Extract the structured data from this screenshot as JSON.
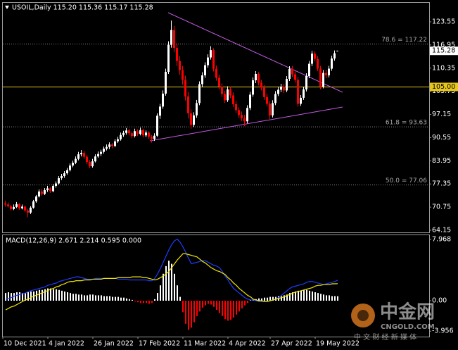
{
  "chart_data": [
    {
      "type": "candlestick",
      "title": "USOIL,Daily  115.20 115.36 115.17 115.28",
      "up_color": "#ffffff",
      "down_color": "#ff0000",
      "ohlc": [
        [
          71.8,
          72.6,
          70.9,
          71.5
        ],
        [
          71.5,
          72.1,
          70.6,
          71.0
        ],
        [
          71.0,
          71.4,
          69.8,
          70.2
        ],
        [
          70.2,
          71.5,
          69.9,
          70.8
        ],
        [
          70.8,
          72.2,
          70.5,
          71.6
        ],
        [
          71.6,
          71.9,
          70.0,
          70.4
        ],
        [
          70.4,
          71.5,
          70.1,
          70.9
        ],
        [
          70.9,
          71.2,
          69.3,
          69.8
        ],
        [
          69.8,
          70.3,
          67.9,
          69.2
        ],
        [
          69.2,
          71.0,
          68.8,
          70.6
        ],
        [
          70.6,
          72.8,
          70.3,
          72.4
        ],
        [
          72.4,
          74.2,
          72.0,
          73.8
        ],
        [
          73.8,
          75.8,
          73.5,
          75.2
        ],
        [
          75.2,
          75.9,
          74.0,
          74.5
        ],
        [
          74.5,
          76.2,
          74.2,
          75.6
        ],
        [
          75.6,
          76.8,
          75.1,
          76.1
        ],
        [
          76.1,
          76.5,
          74.8,
          75.3
        ],
        [
          75.3,
          77.3,
          75.0,
          76.8
        ],
        [
          76.8,
          78.1,
          76.3,
          77.5
        ],
        [
          77.5,
          79.6,
          77.2,
          79.0
        ],
        [
          79.0,
          80.2,
          78.5,
          79.6
        ],
        [
          79.6,
          81.0,
          79.1,
          80.4
        ],
        [
          80.4,
          81.9,
          80.0,
          81.3
        ],
        [
          81.3,
          83.2,
          80.9,
          82.6
        ],
        [
          82.6,
          84.0,
          82.1,
          83.4
        ],
        [
          83.4,
          85.2,
          83.0,
          84.5
        ],
        [
          84.5,
          86.5,
          84.1,
          85.8
        ],
        [
          85.8,
          87.0,
          85.2,
          86.2
        ],
        [
          86.2,
          86.8,
          84.5,
          85.1
        ],
        [
          85.1,
          85.6,
          83.0,
          83.6
        ],
        [
          83.6,
          84.2,
          81.8,
          82.4
        ],
        [
          82.4,
          84.5,
          82.0,
          83.8
        ],
        [
          83.8,
          85.8,
          83.5,
          85.2
        ],
        [
          85.2,
          86.6,
          84.8,
          85.9
        ],
        [
          85.9,
          87.1,
          85.3,
          86.5
        ],
        [
          86.5,
          88.0,
          86.0,
          87.4
        ],
        [
          87.4,
          88.6,
          86.9,
          87.9
        ],
        [
          87.9,
          89.2,
          87.3,
          88.6
        ],
        [
          88.6,
          89.0,
          87.5,
          88.2
        ],
        [
          88.2,
          90.1,
          87.8,
          89.5
        ],
        [
          89.5,
          90.8,
          89.0,
          90.1
        ],
        [
          90.1,
          92.0,
          89.7,
          91.3
        ],
        [
          91.3,
          92.5,
          90.8,
          91.9
        ],
        [
          91.9,
          93.3,
          91.4,
          92.6
        ],
        [
          92.6,
          93.0,
          91.2,
          91.8
        ],
        [
          91.8,
          92.3,
          90.4,
          91.0
        ],
        [
          91.0,
          93.1,
          90.6,
          92.4
        ],
        [
          92.4,
          92.9,
          91.0,
          91.6
        ],
        [
          91.6,
          93.4,
          91.2,
          92.7
        ],
        [
          92.7,
          93.1,
          90.6,
          91.2
        ],
        [
          91.2,
          92.6,
          90.7,
          92.0
        ],
        [
          92.0,
          92.4,
          90.2,
          90.8
        ],
        [
          90.8,
          91.3,
          89.1,
          90.2
        ],
        [
          90.2,
          91.8,
          89.6,
          91.1
        ],
        [
          91.1,
          97.5,
          90.8,
          96.8
        ],
        [
          96.8,
          100.2,
          95.9,
          99.4
        ],
        [
          99.4,
          104.0,
          98.8,
          103.1
        ],
        [
          103.1,
          110.2,
          102.5,
          109.3
        ],
        [
          109.3,
          118.0,
          108.7,
          117.0
        ],
        [
          117.0,
          123.9,
          116.2,
          121.2
        ],
        [
          121.2,
          122.4,
          114.9,
          116.1
        ],
        [
          116.1,
          117.3,
          111.0,
          112.4
        ],
        [
          112.4,
          113.8,
          108.5,
          109.8
        ],
        [
          109.8,
          111.0,
          105.6,
          107.0
        ],
        [
          107.0,
          108.2,
          101.1,
          102.3
        ],
        [
          102.3,
          103.5,
          96.0,
          97.5
        ],
        [
          97.5,
          98.6,
          93.1,
          94.2
        ],
        [
          94.2,
          97.8,
          93.6,
          96.9
        ],
        [
          96.9,
          101.3,
          96.2,
          100.4
        ],
        [
          100.4,
          106.6,
          99.8,
          105.8
        ],
        [
          105.8,
          109.2,
          104.9,
          108.3
        ],
        [
          108.3,
          112.0,
          107.6,
          111.2
        ],
        [
          111.2,
          114.3,
          110.5,
          113.4
        ],
        [
          113.4,
          116.6,
          112.8,
          115.5
        ],
        [
          115.5,
          116.0,
          109.4,
          110.2
        ],
        [
          110.2,
          111.1,
          106.8,
          107.6
        ],
        [
          107.6,
          108.5,
          104.3,
          105.1
        ],
        [
          105.1,
          106.0,
          102.1,
          103.0
        ],
        [
          103.0,
          103.9,
          100.4,
          101.2
        ],
        [
          101.2,
          105.2,
          100.7,
          104.3
        ],
        [
          104.3,
          105.0,
          101.8,
          102.6
        ],
        [
          102.6,
          103.4,
          99.3,
          100.1
        ],
        [
          100.1,
          101.0,
          97.6,
          98.4
        ],
        [
          98.4,
          99.2,
          96.2,
          97.0
        ],
        [
          97.0,
          98.0,
          95.3,
          96.1
        ],
        [
          96.1,
          97.0,
          93.8,
          95.2
        ],
        [
          95.2,
          99.8,
          94.6,
          99.0
        ],
        [
          99.0,
          103.6,
          98.4,
          102.8
        ],
        [
          102.8,
          107.7,
          102.2,
          106.9
        ],
        [
          106.9,
          109.5,
          106.1,
          108.7
        ],
        [
          108.7,
          109.2,
          105.4,
          106.2
        ],
        [
          106.2,
          107.0,
          104.0,
          104.8
        ],
        [
          104.8,
          105.5,
          101.3,
          102.1
        ],
        [
          102.1,
          103.0,
          99.5,
          100.2
        ],
        [
          100.2,
          101.0,
          95.8,
          96.9
        ],
        [
          96.9,
          101.2,
          96.3,
          100.4
        ],
        [
          100.4,
          103.8,
          99.8,
          103.0
        ],
        [
          103.0,
          105.0,
          102.4,
          104.2
        ],
        [
          104.2,
          105.9,
          103.5,
          105.1
        ],
        [
          105.1,
          105.8,
          103.2,
          104.0
        ],
        [
          104.0,
          108.1,
          103.5,
          107.3
        ],
        [
          107.3,
          110.9,
          106.7,
          110.1
        ],
        [
          110.1,
          111.0,
          107.8,
          108.6
        ],
        [
          108.6,
          109.4,
          106.2,
          107.0
        ],
        [
          107.0,
          107.8,
          99.4,
          100.2
        ],
        [
          100.2,
          102.7,
          99.6,
          101.9
        ],
        [
          101.9,
          105.1,
          101.3,
          104.3
        ],
        [
          104.3,
          108.9,
          103.7,
          108.1
        ],
        [
          108.1,
          112.4,
          107.5,
          111.6
        ],
        [
          111.6,
          115.3,
          110.9,
          114.5
        ],
        [
          114.5,
          115.2,
          112.3,
          113.0
        ],
        [
          113.0,
          113.8,
          109.5,
          110.2
        ],
        [
          110.2,
          111.0,
          104.3,
          105.1
        ],
        [
          105.1,
          109.8,
          104.6,
          109.0
        ],
        [
          109.0,
          109.9,
          107.5,
          108.3
        ],
        [
          108.3,
          111.0,
          107.7,
          110.2
        ],
        [
          110.2,
          113.9,
          109.6,
          113.1
        ],
        [
          113.1,
          115.4,
          112.5,
          114.6
        ],
        [
          115.2,
          115.36,
          115.17,
          115.28
        ]
      ],
      "ylim": [
        63.55,
        129.17
      ],
      "yticks": [
        123.55,
        116.95,
        110.35,
        103.75,
        97.15,
        90.55,
        83.95,
        77.35,
        70.75,
        64.15
      ],
      "levels": [
        {
          "value": 117.22,
          "label": "78.6 = 117.22"
        },
        {
          "value": 93.63,
          "label": "61.8 = 93.63"
        },
        {
          "value": 77.06,
          "label": "50.0 = 77.06"
        }
      ],
      "level_color": "#8a8a8a",
      "price_line": {
        "value": 105,
        "label": "105.00",
        "color": "#e6c619"
      },
      "current_price": {
        "value": 115.28,
        "label": "115.28"
      },
      "trendline_color": "#c25be0",
      "trendlines": [
        {
          "x": [
            58,
            120
          ],
          "y": [
            126.16,
            103.48
          ]
        },
        {
          "x": [
            51.5,
            120
          ],
          "y": [
            89.63,
            99.27
          ]
        }
      ],
      "x_labels": [
        "10 Dec 2021",
        "4 Jan 2022",
        "26 Jan 2022",
        "17 Feb 2022",
        "11 Mar 2022",
        "4 Apr 2022",
        "27 Apr 2022",
        "19 May 2022"
      ]
    },
    {
      "type": "macd",
      "title": "MACD(12,26,9) 2.671 2.214 0.595 0.000",
      "ylim": [
        -4.67,
        8.61
      ],
      "yticks": [
        7.968,
        {
          "value": 0,
          "label": "0.00"
        },
        -3.956
      ],
      "histogram": {
        "up_color": "#ffffff",
        "down_color": "#ff0000",
        "values": [
          1.0,
          1.1,
          1.0,
          1.0,
          1.1,
          1.1,
          1.0,
          1.0,
          1.1,
          1.2,
          1.2,
          1.3,
          1.4,
          1.4,
          1.5,
          1.6,
          1.6,
          1.5,
          1.5,
          1.4,
          1.3,
          1.2,
          1.1,
          1.0,
          0.9,
          0.9,
          0.8,
          0.8,
          0.7,
          0.7,
          0.8,
          0.8,
          0.7,
          0.7,
          0.7,
          0.6,
          0.6,
          0.6,
          0.5,
          0.5,
          0.5,
          0.4,
          0.4,
          0.3,
          0.2,
          0.1,
          -0.1,
          -0.2,
          -0.3,
          -0.3,
          -0.3,
          -0.4,
          -0.3,
          0.2,
          1.0,
          2.0,
          3.5,
          4.5,
          5.2,
          4.8,
          3.5,
          2.0,
          0.5,
          -1.5,
          -3.0,
          -3.8,
          -3.5,
          -2.8,
          -2.0,
          -1.4,
          -0.9,
          -0.6,
          -0.4,
          -0.5,
          -0.8,
          -1.2,
          -1.6,
          -2.0,
          -2.4,
          -2.6,
          -2.5,
          -2.2,
          -1.8,
          -1.4,
          -1.0,
          -0.6,
          -0.3,
          0.1,
          0.2,
          0.2,
          0.3,
          0.3,
          0.4,
          0.4,
          0.5,
          0.5,
          0.5,
          0.6,
          0.6,
          0.7,
          0.8,
          1.0,
          1.1,
          1.2,
          1.3,
          1.3,
          1.4,
          1.4,
          1.3,
          1.2,
          1.1,
          1.0,
          0.9,
          0.8,
          0.7,
          0.7,
          0.6,
          0.6,
          0.595
        ]
      },
      "macd": {
        "color": "#1e3cff",
        "values": [
          0.2,
          0.3,
          0.4,
          0.6,
          0.7,
          0.8,
          0.9,
          1.0,
          1.2,
          1.3,
          1.4,
          1.5,
          1.6,
          1.7,
          1.8,
          2.0,
          2.1,
          2.2,
          2.3,
          2.5,
          2.6,
          2.7,
          2.8,
          2.9,
          3.0,
          3.1,
          3.1,
          3.0,
          2.9,
          2.8,
          2.8,
          2.8,
          2.9,
          2.9,
          2.9,
          2.9,
          2.9,
          2.9,
          2.9,
          2.9,
          2.8,
          2.8,
          2.8,
          2.8,
          2.7,
          2.7,
          2.7,
          2.7,
          2.7,
          2.7,
          2.7,
          2.6,
          2.6,
          2.9,
          3.5,
          4.2,
          5.0,
          5.8,
          6.6,
          7.3,
          7.8,
          8.0,
          7.6,
          7.0,
          6.3,
          5.5,
          4.8,
          4.9,
          5.0,
          5.1,
          5.2,
          5.2,
          5.0,
          4.8,
          4.6,
          4.5,
          4.3,
          3.8,
          3.2,
          2.7,
          2.1,
          1.6,
          1.3,
          1.0,
          0.7,
          0.4,
          0.2,
          0.1,
          0.1,
          0.0,
          -0.1,
          -0.1,
          -0.1,
          -0.1,
          0.0,
          0.1,
          0.2,
          0.4,
          0.7,
          1.0,
          1.3,
          1.6,
          1.8,
          1.9,
          2.0,
          2.1,
          2.2,
          2.4,
          2.5,
          2.5,
          2.4,
          2.3,
          2.2,
          2.1,
          2.2,
          2.3,
          2.4,
          2.5,
          2.671
        ]
      },
      "signal": {
        "color": "#f2e600",
        "values": [
          -1.2,
          -1.0,
          -0.8,
          -0.7,
          -0.5,
          -0.3,
          -0.1,
          0.1,
          0.2,
          0.4,
          0.6,
          0.7,
          0.9,
          1.0,
          1.2,
          1.3,
          1.5,
          1.6,
          1.8,
          1.9,
          2.1,
          2.2,
          2.4,
          2.5,
          2.5,
          2.6,
          2.6,
          2.6,
          2.7,
          2.7,
          2.7,
          2.8,
          2.8,
          2.8,
          2.8,
          2.9,
          2.9,
          2.9,
          2.9,
          2.9,
          3.0,
          3.0,
          3.0,
          3.0,
          3.0,
          3.1,
          3.1,
          3.1,
          3.1,
          3.0,
          3.0,
          2.9,
          2.8,
          2.7,
          2.8,
          3.0,
          3.2,
          3.5,
          3.8,
          4.3,
          4.8,
          5.3,
          5.7,
          6.1,
          6.1,
          6.0,
          5.9,
          5.8,
          5.7,
          5.4,
          5.1,
          4.9,
          4.6,
          4.3,
          4.1,
          3.9,
          3.8,
          3.6,
          3.4,
          3.0,
          2.7,
          2.3,
          2.0,
          1.6,
          1.3,
          1.0,
          0.7,
          0.5,
          0.2,
          0.1,
          0.0,
          0.0,
          -0.1,
          -0.1,
          0.0,
          0.1,
          0.2,
          0.3,
          0.4,
          0.5,
          0.7,
          0.8,
          1.0,
          1.1,
          1.2,
          1.3,
          1.4,
          1.5,
          1.6,
          1.7,
          1.9,
          2.0,
          2.0,
          2.1,
          2.1,
          2.1,
          2.2,
          2.2,
          2.214
        ]
      }
    }
  ],
  "watermark": {
    "name": "中金网",
    "site": "CNGOLD.COM",
    "tagline": "中 文 财 经 新 媒 体"
  }
}
